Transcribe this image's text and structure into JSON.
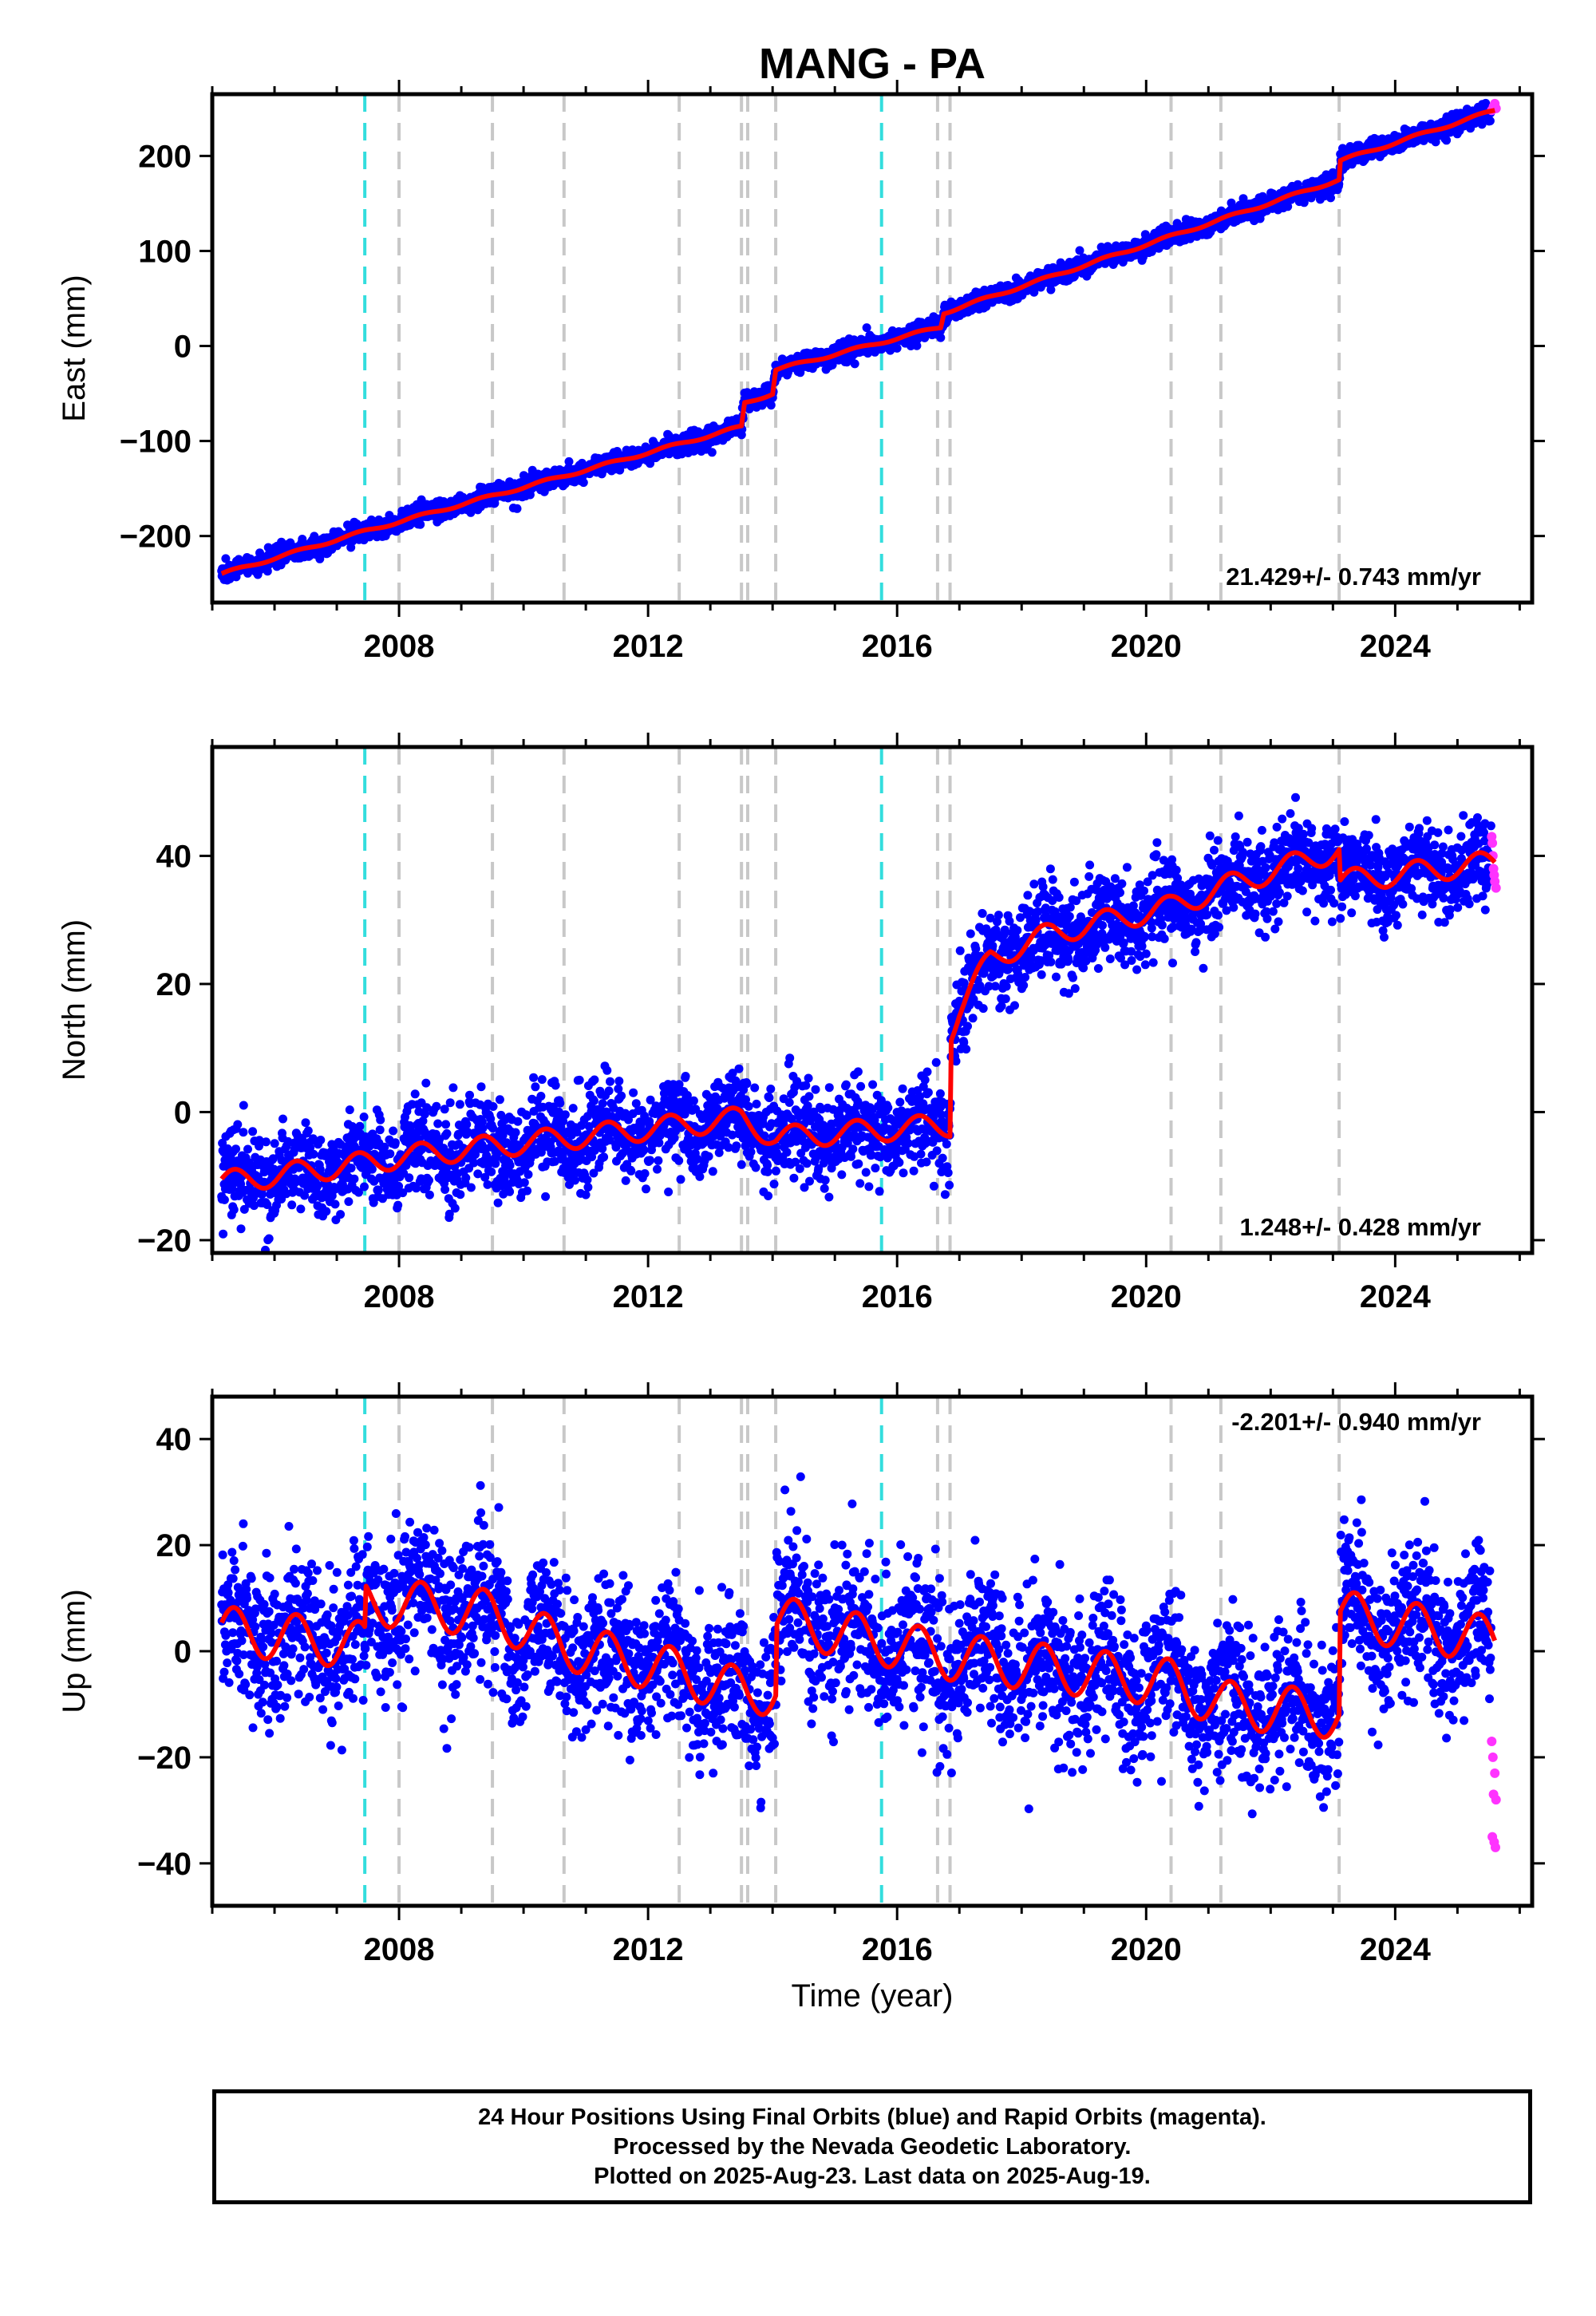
{
  "title": "MANG - PA",
  "colors": {
    "final_orbits": "#0000ff",
    "rapid_orbits": "#ff33ff",
    "model_fit": "#ff0000",
    "equipment_change": "#c8c8c8",
    "earthquake": "#33dddd"
  },
  "x_axis": {
    "label": "Time (year)",
    "range": [
      2005.0,
      2026.2
    ],
    "ticks": [
      2008,
      2012,
      2016,
      2020,
      2024
    ],
    "tick_labels": [
      "2008",
      "2012",
      "2016",
      "2020",
      "2024"
    ]
  },
  "footer": {
    "line1": "24 Hour Positions Using Final Orbits (blue) and Rapid Orbits (magenta).",
    "line2": "Processed by the Nevada Geodetic Laboratory.",
    "line3": "Plotted on 2025-Aug-23. Last data on 2025-Aug-19."
  },
  "chart_data": [
    {
      "type": "scatter",
      "component": "east",
      "ylabel": "East (mm)",
      "ylim": [
        -270,
        265
      ],
      "yticks": [
        -200,
        -100,
        0,
        100,
        200
      ],
      "ytick_labels": [
        "−200",
        "−100",
        "0",
        "100",
        "200"
      ],
      "rate_label": "21.429+/- 0.743 mm/yr",
      "equipment_change_years": [
        2008.0,
        2009.5,
        2010.65,
        2012.5,
        2013.5,
        2013.6,
        2014.05,
        2016.65,
        2016.85,
        2020.4,
        2021.2,
        2023.1
      ],
      "earthquake_years": [
        2007.45,
        2015.75
      ],
      "model_knots": [
        [
          2005.15,
          -240
        ],
        [
          2007.45,
          -195
        ],
        [
          2013.5,
          -85
        ],
        [
          2013.55,
          -60
        ],
        [
          2014.0,
          -50
        ],
        [
          2014.05,
          -25
        ],
        [
          2016.7,
          20
        ],
        [
          2016.75,
          35
        ],
        [
          2023.1,
          175
        ],
        [
          2023.12,
          195
        ],
        [
          2025.6,
          248
        ]
      ],
      "seasonal_amplitude": 1.5,
      "scatter_sd": 5,
      "rapid_points": [
        [
          2025.55,
          248
        ],
        [
          2025.58,
          252
        ],
        [
          2025.6,
          255
        ],
        [
          2025.62,
          250
        ]
      ]
    },
    {
      "type": "scatter",
      "component": "north",
      "ylabel": "North (mm)",
      "ylim": [
        -22,
        57
      ],
      "yticks": [
        -20,
        0,
        20,
        40
      ],
      "ytick_labels": [
        "−20",
        "0",
        "20",
        "40"
      ],
      "rate_label": "1.248+/- 0.428 mm/yr",
      "equipment_change_years": [
        2008.0,
        2009.5,
        2010.65,
        2012.5,
        2013.5,
        2013.6,
        2014.05,
        2016.65,
        2016.85,
        2020.4,
        2021.2,
        2023.1
      ],
      "earthquake_years": [
        2007.45,
        2015.75
      ],
      "model_knots": [
        [
          2005.15,
          -11
        ],
        [
          2007.45,
          -8
        ],
        [
          2008.0,
          -7
        ],
        [
          2013.5,
          -1
        ],
        [
          2014.05,
          -4
        ],
        [
          2016.85,
          -2
        ],
        [
          2016.87,
          13
        ],
        [
          2017.0,
          16
        ],
        [
          2017.5,
          24
        ],
        [
          2018.5,
          28
        ],
        [
          2020.4,
          32
        ],
        [
          2021.2,
          35
        ],
        [
          2023.1,
          41
        ],
        [
          2023.12,
          36
        ],
        [
          2025.6,
          39
        ]
      ],
      "seasonal_amplitude": 1.8,
      "scatter_sd": 3.5,
      "rapid_points": [
        [
          2025.55,
          43
        ],
        [
          2025.57,
          40
        ],
        [
          2025.58,
          38
        ],
        [
          2025.6,
          36
        ],
        [
          2025.62,
          35
        ],
        [
          2025.56,
          42
        ],
        [
          2025.59,
          37
        ]
      ]
    },
    {
      "type": "scatter",
      "component": "up",
      "ylabel": "Up (mm)",
      "ylim": [
        -48,
        48
      ],
      "yticks": [
        -40,
        -20,
        0,
        20,
        40
      ],
      "ytick_labels": [
        "−40",
        "−20",
        "0",
        "20",
        "40"
      ],
      "rate_label": "-2.201+/- 0.940 mm/yr",
      "equipment_change_years": [
        2008.0,
        2009.5,
        2010.65,
        2012.5,
        2013.5,
        2013.6,
        2014.05,
        2016.65,
        2016.85,
        2020.4,
        2021.2,
        2023.1
      ],
      "earthquake_years": [
        2007.45,
        2015.75
      ],
      "model_knots": [
        [
          2005.15,
          4
        ],
        [
          2007.45,
          1
        ],
        [
          2007.47,
          9
        ],
        [
          2008.0,
          9
        ],
        [
          2009.5,
          7
        ],
        [
          2010.65,
          1
        ],
        [
          2012.5,
          -4
        ],
        [
          2013.6,
          -8
        ],
        [
          2014.05,
          -7
        ],
        [
          2014.07,
          6
        ],
        [
          2016.85,
          -1
        ],
        [
          2020.4,
          -6
        ],
        [
          2021.2,
          -10
        ],
        [
          2023.1,
          -12
        ],
        [
          2023.12,
          7
        ],
        [
          2025.6,
          2
        ]
      ],
      "seasonal_amplitude": 4.5,
      "scatter_sd": 7,
      "rapid_points": [
        [
          2025.55,
          -17
        ],
        [
          2025.57,
          -20
        ],
        [
          2025.6,
          -23
        ],
        [
          2025.58,
          -27
        ],
        [
          2025.62,
          -28
        ],
        [
          2025.56,
          -35
        ],
        [
          2025.59,
          -36
        ],
        [
          2025.61,
          -37
        ]
      ]
    }
  ]
}
